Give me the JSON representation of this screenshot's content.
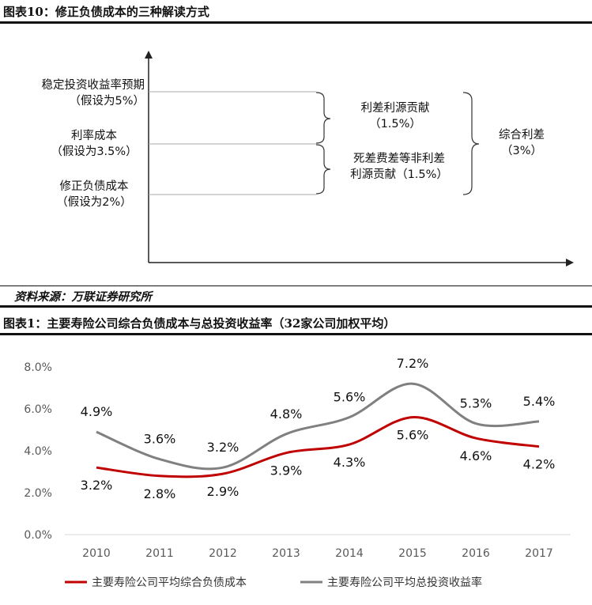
{
  "figure10": {
    "title": "图表10：修正负债成本的三种解读方式",
    "left_labels": [
      {
        "line1": "稳定投资收益率预期",
        "line2": "（假设为5%）"
      },
      {
        "line1": "利率成本",
        "line2": "（假设为3.5%）"
      },
      {
        "line1": "修正负债成本",
        "line2": "（假设为2%）"
      }
    ],
    "brackets": {
      "upper": {
        "line1": "利差利源贡献",
        "line2": "（1.5%）"
      },
      "lower": {
        "line1": "死差费差等非利差",
        "line2": "利源贡献（1.5%）"
      },
      "total": {
        "line1": "综合利差",
        "line2": "（3%）"
      }
    }
  },
  "source": "资料来源：万联证券研究所",
  "figure1": {
    "title": "图表1：主要寿险公司综合负债成本与总投资收益率（32家公司加权平均）"
  },
  "chart_data": {
    "type": "line",
    "categories": [
      "2010",
      "2011",
      "2012",
      "2013",
      "2014",
      "2015",
      "2016",
      "2017"
    ],
    "series": [
      {
        "name": "主要寿险公司平均综合负债成本",
        "color": "#c00000",
        "values": [
          3.2,
          2.8,
          2.9,
          3.9,
          4.3,
          5.6,
          4.6,
          4.2
        ],
        "labels": [
          "3.2%",
          "2.8%",
          "2.9%",
          "3.9%",
          "4.3%",
          "5.6%",
          "4.6%",
          "4.2%"
        ]
      },
      {
        "name": "主要寿险公司平均总投资收益率",
        "color": "#808080",
        "values": [
          4.9,
          3.6,
          3.2,
          4.8,
          5.6,
          7.2,
          5.3,
          5.4
        ],
        "labels": [
          "4.9%",
          "3.6%",
          "3.2%",
          "4.8%",
          "5.6%",
          "7.2%",
          "5.3%",
          "5.4%"
        ]
      }
    ],
    "y_ticks": [
      "0.0%",
      "2.0%",
      "4.0%",
      "6.0%",
      "8.0%"
    ],
    "ylim": [
      0,
      8
    ],
    "grid": false,
    "legend_position": "bottom"
  }
}
